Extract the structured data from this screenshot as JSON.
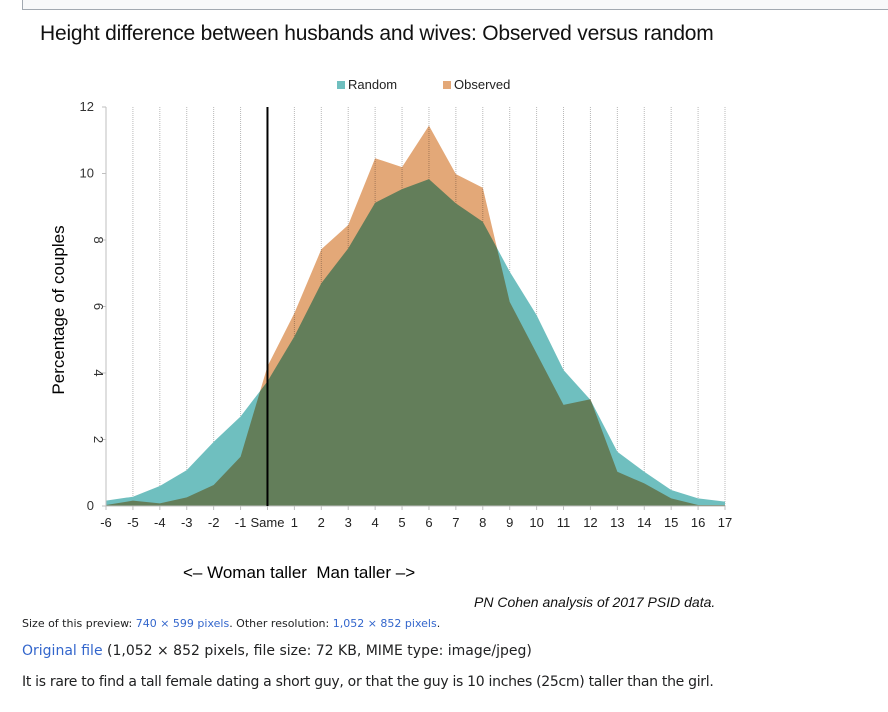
{
  "page": {
    "preview_prefix": "Size of this preview: ",
    "preview_link": "740 × 599 pixels",
    "preview_middle": ". Other resolution: ",
    "other_resolution_link": "1,052 × 852 pixels",
    "preview_suffix": ".",
    "original_file_link": "Original file",
    "original_file_info": " (1,052 × 852 pixels, file size: 72 KB, MIME type: image/jpeg)",
    "description": "It is rare to find a tall female dating a short guy, or that the guy is 10 inches (25cm) taller than the girl."
  },
  "colors": {
    "random": "#6fbfbf",
    "observed": "#e3a878",
    "reference_line": "#000000",
    "link": "#3366cc"
  },
  "chart_data": {
    "type": "area",
    "title": "Height difference between husbands and wives: Observed versus random",
    "xlabel": "<– Woman taller  Man taller –>",
    "ylabel": "Percentage of couples",
    "source_note": "PN Cohen analysis of 2017 PSID data.",
    "x": [
      -6,
      -5,
      -4,
      -3,
      -2,
      -1,
      0,
      1,
      2,
      3,
      4,
      5,
      6,
      7,
      8,
      9,
      10,
      11,
      12,
      13,
      14,
      15,
      16,
      17
    ],
    "x_tick_labels": [
      "-6",
      "-5",
      "-4",
      "-3",
      "-2",
      "-1",
      "Same",
      "1",
      "2",
      "3",
      "4",
      "5",
      "6",
      "7",
      "8",
      "9",
      "10",
      "11",
      "12",
      "13",
      "14",
      "15",
      "16",
      "17"
    ],
    "y_ticks": [
      0,
      2,
      4,
      6,
      8,
      10,
      12
    ],
    "ylim": [
      0,
      12
    ],
    "xlim": [
      -6,
      17
    ],
    "grid": "vertical dotted",
    "legend": "top-center",
    "reference_line_x": 0,
    "series": [
      {
        "name": "Random",
        "values": [
          0.16,
          0.28,
          0.6,
          1.08,
          1.93,
          2.69,
          3.75,
          5.1,
          6.7,
          7.75,
          9.12,
          9.53,
          9.83,
          9.1,
          8.55,
          7.05,
          5.74,
          4.09,
          3.19,
          1.63,
          1.03,
          0.48,
          0.23,
          0.13
        ]
      },
      {
        "name": "Observed",
        "values": [
          0.03,
          0.16,
          0.08,
          0.26,
          0.63,
          1.48,
          4.2,
          5.8,
          7.72,
          8.45,
          10.46,
          10.19,
          11.44,
          9.98,
          9.57,
          6.14,
          4.59,
          3.04,
          3.21,
          1.03,
          0.68,
          0.23,
          0.03,
          0.03
        ]
      }
    ]
  }
}
